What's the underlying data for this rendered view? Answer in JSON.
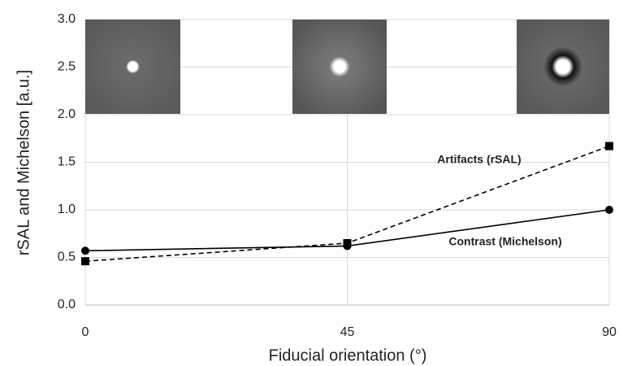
{
  "chart_data": {
    "type": "line",
    "x_label": "Fiducial orientation (°)",
    "y_label": "rSAL and Michelson [a.u.]",
    "x": [
      0,
      45,
      90
    ],
    "series": [
      {
        "name": "Artifacts (rSAL)",
        "color": "#000000",
        "dash": true,
        "marker": "square",
        "values": [
          0.46,
          0.65,
          1.67
        ]
      },
      {
        "name": "Contrast (Michelson)",
        "color": "#000000",
        "dash": false,
        "marker": "circle",
        "values": [
          0.57,
          0.62,
          1.0
        ]
      }
    ],
    "xlim": [
      0,
      90
    ],
    "xticks": [
      0,
      45,
      90
    ],
    "ylim": [
      0,
      3
    ],
    "yticks": [
      {
        "value": 0,
        "label": "0.0"
      },
      0.5,
      {
        "value": 1,
        "label": "1.0"
      },
      1.5,
      {
        "value": 2,
        "label": "2.0"
      },
      2.5,
      {
        "value": 3,
        "label": "3.0"
      }
    ],
    "grid": true
  }
}
